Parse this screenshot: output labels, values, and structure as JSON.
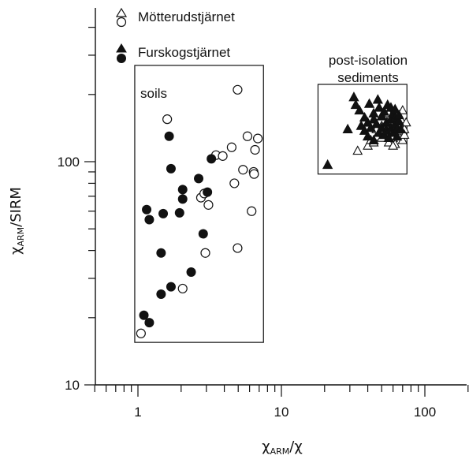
{
  "chart_data": {
    "type": "scatter",
    "title": "",
    "xlabel": {
      "main": "χ",
      "sub": "ARM",
      "tail": "/χ"
    },
    "ylabel": {
      "main": "χ",
      "sub": "ARM",
      "tail": "/SIRM"
    },
    "x_scale": "log",
    "y_scale": "log",
    "xlim": [
      0.5,
      200
    ],
    "ylim": [
      10,
      400
    ],
    "x_ticks": [
      1,
      10,
      100
    ],
    "x_tick_labels": [
      "1",
      "10",
      "100"
    ],
    "y_ticks": [
      10,
      100
    ],
    "y_tick_labels": [
      "10",
      "100"
    ],
    "grid": false,
    "legend": {
      "placement": "top-left",
      "entries": [
        {
          "label": "Mötterudstjärnet",
          "markers": [
            "triangle-open",
            "circle-open"
          ]
        },
        {
          "label": "Furskogstjärnet",
          "markers": [
            "triangle-filled",
            "circle-filled"
          ]
        }
      ]
    },
    "annotation_boxes": [
      {
        "label": "soils",
        "x_range": [
          0.95,
          7.5
        ],
        "y_range": [
          15.5,
          270
        ]
      },
      {
        "label_lines": [
          "post-isolation",
          "sediments"
        ],
        "x_range": [
          18,
          75
        ],
        "y_range": [
          88,
          222
        ]
      }
    ],
    "series": [
      {
        "name": "Mötterudstjärnet",
        "group": "soils",
        "marker": "circle-open",
        "points": [
          [
            1.05,
            17
          ],
          [
            1.6,
            155
          ],
          [
            2.05,
            27
          ],
          [
            2.75,
            69
          ],
          [
            2.9,
            72
          ],
          [
            2.95,
            39
          ],
          [
            3.1,
            64
          ],
          [
            3.5,
            107
          ],
          [
            3.9,
            106
          ],
          [
            4.5,
            116
          ],
          [
            4.7,
            80
          ],
          [
            4.95,
            41
          ],
          [
            4.95,
            210
          ],
          [
            5.4,
            92
          ],
          [
            5.8,
            130
          ],
          [
            6.2,
            60
          ],
          [
            6.4,
            90
          ],
          [
            6.45,
            88
          ],
          [
            6.55,
            113
          ],
          [
            6.85,
            127
          ]
        ]
      },
      {
        "name": "Furskogstjärnet",
        "group": "soils",
        "marker": "circle-filled",
        "points": [
          [
            1.1,
            20.5
          ],
          [
            1.15,
            61
          ],
          [
            1.2,
            19
          ],
          [
            1.2,
            55
          ],
          [
            1.45,
            25.5
          ],
          [
            1.45,
            39
          ],
          [
            1.5,
            58.5
          ],
          [
            1.65,
            130
          ],
          [
            1.7,
            27.5
          ],
          [
            1.7,
            93
          ],
          [
            1.95,
            59
          ],
          [
            2.05,
            68
          ],
          [
            2.05,
            75
          ],
          [
            2.35,
            32
          ],
          [
            2.65,
            84
          ],
          [
            2.85,
            47.5
          ],
          [
            3.05,
            73
          ],
          [
            3.25,
            103
          ]
        ]
      },
      {
        "name": "Mötterudstjärnet",
        "group": "post-isolation sediments",
        "marker": "triangle-open",
        "points": [
          [
            34,
            112
          ],
          [
            40,
            118
          ],
          [
            42,
            125
          ],
          [
            44,
            122
          ],
          [
            46,
            130
          ],
          [
            48,
            135
          ],
          [
            50,
            128
          ],
          [
            52,
            140
          ],
          [
            54,
            132
          ],
          [
            55,
            150
          ],
          [
            56,
            122
          ],
          [
            58,
            138
          ],
          [
            58,
            145
          ],
          [
            60,
            128
          ],
          [
            60,
            152
          ],
          [
            62,
            135
          ],
          [
            62,
            120
          ],
          [
            64,
            142
          ],
          [
            64,
            160
          ],
          [
            66,
            148
          ],
          [
            66,
            130
          ],
          [
            68,
            138
          ],
          [
            68,
            155
          ],
          [
            70,
            170
          ],
          [
            70,
            125
          ],
          [
            72,
            140
          ],
          [
            72,
            132
          ],
          [
            56,
            165
          ],
          [
            50,
            145
          ],
          [
            46,
            140
          ],
          [
            60,
            118
          ],
          [
            74,
            150
          ]
        ]
      },
      {
        "name": "Furskogstjärnet",
        "group": "post-isolation sediments",
        "marker": "triangle-filled",
        "points": [
          [
            21,
            97
          ],
          [
            29,
            140
          ],
          [
            32,
            195
          ],
          [
            33,
            180
          ],
          [
            35,
            170
          ],
          [
            36,
            145
          ],
          [
            38,
            138
          ],
          [
            40,
            150
          ],
          [
            40,
            130
          ],
          [
            41,
            182
          ],
          [
            42,
            142
          ],
          [
            44,
            155
          ],
          [
            44,
            125
          ],
          [
            46,
            148
          ],
          [
            47,
            190
          ],
          [
            48,
            135
          ],
          [
            50,
            160
          ],
          [
            50,
            142
          ],
          [
            52,
            132
          ],
          [
            52,
            168
          ],
          [
            54,
            150
          ],
          [
            54,
            138
          ],
          [
            55,
            180
          ],
          [
            56,
            128
          ],
          [
            58,
            155
          ],
          [
            58,
            142
          ],
          [
            60,
            165
          ],
          [
            60,
            135
          ],
          [
            62,
            148
          ],
          [
            62,
            158
          ],
          [
            64,
            140
          ],
          [
            64,
            130
          ],
          [
            66,
            152
          ],
          [
            66,
            162
          ],
          [
            68,
            140
          ],
          [
            58,
            175
          ],
          [
            48,
            175
          ],
          [
            44,
            165
          ],
          [
            38,
            158
          ],
          [
            62,
            172
          ]
        ]
      }
    ]
  }
}
